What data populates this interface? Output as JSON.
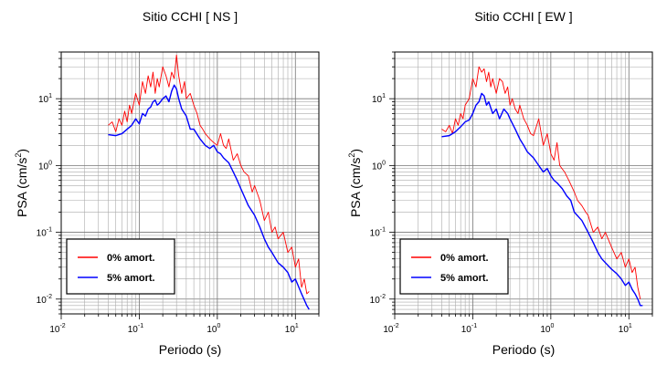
{
  "chart_data": [
    {
      "type": "line",
      "title": "Sitio CCHI [ NS ]",
      "xlabel": "Periodo (s)",
      "ylabel_main": "PSA (cm/s",
      "ylabel_sup": "2",
      "ylabel_close": ")",
      "x_scale": "log",
      "y_scale": "log",
      "xlim": [
        0.01,
        20
      ],
      "ylim": [
        0.006,
        50
      ],
      "grid": true,
      "legend_position": "bottom-left",
      "x_ticks": [
        {
          "base": "10",
          "exp": "-2"
        },
        {
          "base": "10",
          "exp": "-1"
        },
        {
          "base": "10",
          "exp": "0"
        },
        {
          "base": "10",
          "exp": "1"
        }
      ],
      "y_ticks": [
        {
          "base": "10",
          "exp": "-2"
        },
        {
          "base": "10",
          "exp": "-1"
        },
        {
          "base": "10",
          "exp": "0"
        },
        {
          "base": "10",
          "exp": "1"
        }
      ],
      "series": [
        {
          "name": "0% amort.",
          "color": "#ff0000",
          "x": [
            0.04,
            0.045,
            0.05,
            0.055,
            0.06,
            0.065,
            0.07,
            0.075,
            0.08,
            0.09,
            0.1,
            0.11,
            0.12,
            0.13,
            0.14,
            0.15,
            0.16,
            0.17,
            0.18,
            0.2,
            0.22,
            0.24,
            0.26,
            0.28,
            0.3,
            0.32,
            0.35,
            0.38,
            0.4,
            0.45,
            0.5,
            0.55,
            0.6,
            0.65,
            0.7,
            0.8,
            0.9,
            1.0,
            1.1,
            1.2,
            1.3,
            1.4,
            1.6,
            1.8,
            2.0,
            2.2,
            2.5,
            2.8,
            3.0,
            3.5,
            4.0,
            4.5,
            5.0,
            5.5,
            6.0,
            7.0,
            8.0,
            9.0,
            10.0,
            11.0,
            12.0,
            13.0,
            14.0,
            15.0
          ],
          "y": [
            4.0,
            4.5,
            3.2,
            5.0,
            4.0,
            6.5,
            4.5,
            8.0,
            6.0,
            12.0,
            8.0,
            18.0,
            12.0,
            22.0,
            15.0,
            25.0,
            12.0,
            20.0,
            15.0,
            30.0,
            22.0,
            15.0,
            25.0,
            20.0,
            45.0,
            22.0,
            12.0,
            18.0,
            10.0,
            12.0,
            8.0,
            6.0,
            4.0,
            3.5,
            3.0,
            2.5,
            2.2,
            2.0,
            3.0,
            2.0,
            1.8,
            2.5,
            1.2,
            1.5,
            1.0,
            0.8,
            0.7,
            0.4,
            0.5,
            0.3,
            0.15,
            0.2,
            0.1,
            0.12,
            0.08,
            0.1,
            0.05,
            0.06,
            0.03,
            0.04,
            0.015,
            0.02,
            0.012,
            0.013
          ]
        },
        {
          "name": "5% amort.",
          "color": "#0000ff",
          "x": [
            0.04,
            0.05,
            0.06,
            0.07,
            0.08,
            0.09,
            0.1,
            0.11,
            0.12,
            0.13,
            0.14,
            0.15,
            0.16,
            0.17,
            0.18,
            0.2,
            0.22,
            0.24,
            0.26,
            0.28,
            0.3,
            0.32,
            0.35,
            0.4,
            0.45,
            0.5,
            0.6,
            0.7,
            0.8,
            0.9,
            1.0,
            1.1,
            1.2,
            1.4,
            1.6,
            1.8,
            2.0,
            2.5,
            3.0,
            3.5,
            4.0,
            4.5,
            5.0,
            6.0,
            7.0,
            8.0,
            9.0,
            10.0,
            12.0,
            14.0,
            15.0
          ],
          "y": [
            2.9,
            2.8,
            3.0,
            3.5,
            4.0,
            5.0,
            4.2,
            6.0,
            5.5,
            7.0,
            7.5,
            9.0,
            9.5,
            8.0,
            8.5,
            10.0,
            11.0,
            9.0,
            13.0,
            16.0,
            14.0,
            10.0,
            7.0,
            5.5,
            3.5,
            3.5,
            2.5,
            2.0,
            1.8,
            2.0,
            1.6,
            1.5,
            1.3,
            1.1,
            0.8,
            0.6,
            0.45,
            0.25,
            0.18,
            0.12,
            0.08,
            0.06,
            0.05,
            0.035,
            0.03,
            0.025,
            0.018,
            0.02,
            0.012,
            0.008,
            0.007
          ]
        }
      ]
    },
    {
      "type": "line",
      "title": "Sitio CCHI [ EW ]",
      "xlabel": "Periodo (s)",
      "ylabel_main": "PSA (cm/s",
      "ylabel_sup": "2",
      "ylabel_close": ")",
      "x_scale": "log",
      "y_scale": "log",
      "xlim": [
        0.01,
        20
      ],
      "ylim": [
        0.006,
        50
      ],
      "grid": true,
      "legend_position": "bottom-left",
      "x_ticks": [
        {
          "base": "10",
          "exp": "-2"
        },
        {
          "base": "10",
          "exp": "-1"
        },
        {
          "base": "10",
          "exp": "0"
        },
        {
          "base": "10",
          "exp": "1"
        }
      ],
      "y_ticks": [
        {
          "base": "10",
          "exp": "-2"
        },
        {
          "base": "10",
          "exp": "-1"
        },
        {
          "base": "10",
          "exp": "0"
        },
        {
          "base": "10",
          "exp": "1"
        }
      ],
      "series": [
        {
          "name": "0% amort.",
          "color": "#ff0000",
          "x": [
            0.04,
            0.045,
            0.05,
            0.055,
            0.06,
            0.065,
            0.07,
            0.075,
            0.08,
            0.09,
            0.1,
            0.11,
            0.12,
            0.13,
            0.14,
            0.15,
            0.16,
            0.17,
            0.18,
            0.2,
            0.22,
            0.24,
            0.26,
            0.28,
            0.3,
            0.32,
            0.35,
            0.38,
            0.4,
            0.45,
            0.5,
            0.55,
            0.6,
            0.7,
            0.8,
            0.9,
            1.0,
            1.1,
            1.2,
            1.3,
            1.5,
            1.7,
            2.0,
            2.2,
            2.5,
            2.8,
            3.0,
            3.5,
            4.0,
            4.5,
            5.0,
            6.0,
            7.0,
            8.0,
            9.0,
            10.0,
            11.0,
            12.0,
            13.0,
            14.0
          ],
          "y": [
            3.5,
            3.2,
            4.0,
            3.0,
            5.0,
            4.0,
            6.0,
            5.0,
            8.0,
            10.0,
            20.0,
            15.0,
            30.0,
            25.0,
            28.0,
            18.0,
            25.0,
            15.0,
            20.0,
            12.0,
            20.0,
            18.0,
            12.0,
            15.0,
            8.0,
            10.0,
            7.0,
            6.0,
            8.0,
            5.0,
            4.0,
            3.0,
            2.8,
            5.0,
            2.0,
            3.0,
            1.5,
            1.2,
            2.2,
            1.0,
            0.8,
            0.6,
            0.4,
            0.3,
            0.25,
            0.2,
            0.18,
            0.1,
            0.12,
            0.08,
            0.1,
            0.06,
            0.04,
            0.05,
            0.03,
            0.04,
            0.025,
            0.03,
            0.015,
            0.01
          ]
        },
        {
          "name": "5% amort.",
          "color": "#0000ff",
          "x": [
            0.04,
            0.05,
            0.06,
            0.07,
            0.08,
            0.09,
            0.1,
            0.11,
            0.12,
            0.13,
            0.14,
            0.15,
            0.16,
            0.18,
            0.2,
            0.22,
            0.25,
            0.28,
            0.3,
            0.35,
            0.4,
            0.45,
            0.5,
            0.6,
            0.7,
            0.8,
            0.9,
            1.0,
            1.1,
            1.2,
            1.4,
            1.6,
            1.8,
            2.0,
            2.5,
            3.0,
            3.5,
            4.0,
            4.5,
            5.0,
            6.0,
            7.0,
            8.0,
            9.0,
            10.0,
            11.0,
            12.0,
            13.0,
            14.0,
            15.0
          ],
          "y": [
            2.7,
            2.8,
            3.2,
            3.8,
            4.5,
            4.8,
            6.0,
            8.0,
            9.0,
            12.0,
            11.0,
            8.0,
            9.0,
            6.0,
            7.0,
            5.0,
            7.0,
            6.0,
            5.0,
            3.5,
            2.5,
            2.0,
            1.6,
            1.3,
            1.0,
            0.8,
            0.9,
            0.7,
            0.6,
            0.55,
            0.45,
            0.35,
            0.3,
            0.2,
            0.15,
            0.1,
            0.07,
            0.05,
            0.04,
            0.035,
            0.028,
            0.024,
            0.02,
            0.016,
            0.018,
            0.014,
            0.012,
            0.01,
            0.008,
            0.008
          ]
        }
      ]
    }
  ]
}
